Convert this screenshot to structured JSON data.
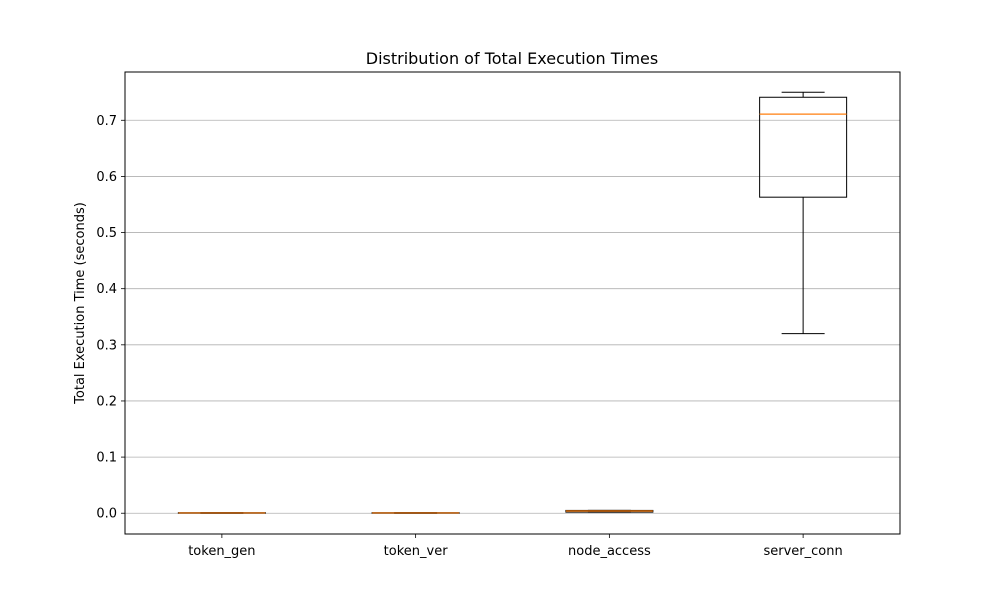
{
  "chart_data": {
    "type": "boxplot",
    "title": "Distribution of Total Execution Times",
    "xlabel": "",
    "ylabel": "Total Execution Time (seconds)",
    "ylim": [
      -0.037,
      0.786
    ],
    "yticks": [
      0.0,
      0.1,
      0.2,
      0.3,
      0.4,
      0.5,
      0.6,
      0.7
    ],
    "ytick_labels": [
      "0.0",
      "0.1",
      "0.2",
      "0.3",
      "0.4",
      "0.5",
      "0.6",
      "0.7"
    ],
    "grid": "y",
    "categories": [
      "token_gen",
      "token_ver",
      "node_access",
      "server_conn"
    ],
    "boxes": [
      {
        "min": 0.0,
        "q1": 0.0,
        "median": 0.0005,
        "q3": 0.001,
        "max": 0.001
      },
      {
        "min": 0.0,
        "q1": 0.0,
        "median": 0.0005,
        "q3": 0.001,
        "max": 0.001
      },
      {
        "min": 0.002,
        "q1": 0.002,
        "median": 0.004,
        "q3": 0.005,
        "max": 0.005
      },
      {
        "min": 0.32,
        "q1": 0.563,
        "median": 0.711,
        "q3": 0.741,
        "max": 0.75
      }
    ],
    "colors": {
      "box": "#000000",
      "median": "#ff7f0e",
      "grid": "#b0b0b0"
    }
  }
}
